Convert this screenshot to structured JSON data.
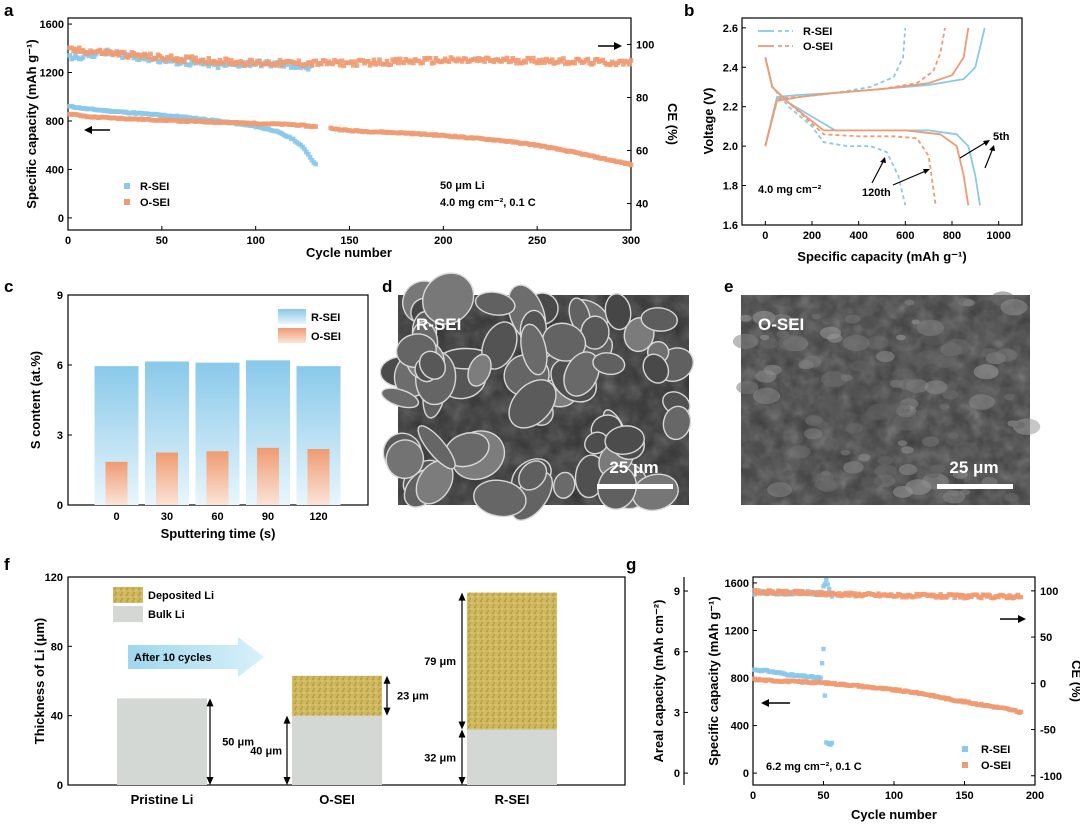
{
  "colors": {
    "rsei": "#89c9ea",
    "osei": "#ef9b72",
    "bulk": "#d3d8d5",
    "deposited": "#cfb85d",
    "sem_dark": "#2e2e2e",
    "arrow": "#b7e4f3"
  },
  "panels": {
    "a": {
      "letter": "a",
      "xlabel": "Cycle number",
      "ylabel_left": "Specific capacity (mAh g⁻¹)",
      "ylabel_right": "CE (%)",
      "note1": "50 μm Li",
      "note2": "4.0 mg cm⁻², 0.1 C",
      "legend": [
        "R-SEI",
        "O-SEI"
      ]
    },
    "b": {
      "letter": "b",
      "xlabel": "Specific capacity (mAh g⁻¹)",
      "ylabel": "Voltage (V)",
      "note": "4.0 mg cm⁻²",
      "legend": [
        "R-SEI",
        "O-SEI"
      ],
      "label_5th": "5th",
      "label_120th": "120th"
    },
    "c": {
      "letter": "c",
      "xlabel": "Sputtering time (s)",
      "ylabel": "S content (at.%)",
      "legend": [
        "R-SEI",
        "O-SEI"
      ]
    },
    "d": {
      "letter": "d",
      "label": "R-SEI",
      "scale": "25 μm"
    },
    "e": {
      "letter": "e",
      "label": "O-SEI",
      "scale": "25 μm"
    },
    "f": {
      "letter": "f",
      "ylabel": "Thickness of Li (μm)",
      "legend": [
        "Deposited Li",
        "Bulk Li"
      ],
      "arrow_text": "After 10 cycles",
      "categories": [
        "Pristine Li",
        "O-SEI",
        "R-SEI"
      ],
      "labels": {
        "pristine_bulk": "50 μm",
        "osei_bulk": "40 μm",
        "osei_dep": "23 μm",
        "rsei_bulk": "32 μm",
        "rsei_dep": "79 μm"
      }
    },
    "g": {
      "letter": "g",
      "xlabel": "Cycle number",
      "ylabel_left1": "Areal capacity (mAh cm⁻²)",
      "ylabel_left2": "Specific capacity (mAh g⁻¹)",
      "ylabel_right": "CE (%)",
      "note": "6.2 mg cm⁻², 0.1 C",
      "legend": [
        "R-SEI",
        "O-SEI"
      ]
    }
  },
  "chart_data": [
    {
      "panel": "a",
      "type": "scatter",
      "xlim": [
        0,
        300
      ],
      "ylim_left": [
        -100,
        1650
      ],
      "ylim_right": [
        30,
        110
      ],
      "xticks": [
        0,
        50,
        100,
        150,
        200,
        250,
        300
      ],
      "yticks_left": [
        0,
        400,
        800,
        1200,
        1600
      ],
      "yticks_right": [
        40,
        60,
        80,
        100
      ],
      "series": [
        {
          "name": "R-SEI",
          "axis": "left",
          "x": [
            1,
            10,
            20,
            40,
            60,
            80,
            100,
            110,
            120,
            126,
            130,
            132
          ],
          "y": [
            920,
            900,
            885,
            860,
            835,
            800,
            755,
            720,
            650,
            570,
            480,
            440
          ]
        },
        {
          "name": "O-SEI",
          "axis": "left",
          "x": [
            1,
            10,
            30,
            60,
            90,
            120,
            140,
            150,
            180,
            200,
            230,
            250,
            270,
            285,
            300
          ],
          "y": [
            860,
            835,
            820,
            800,
            785,
            770,
            740,
            720,
            700,
            680,
            640,
            600,
            540,
            490,
            440
          ]
        },
        {
          "name": "R-SEI",
          "axis": "right",
          "x": [
            1,
            20,
            50,
            80,
            100,
            120,
            130
          ],
          "y": [
            95,
            97,
            94,
            92,
            93,
            92,
            91
          ]
        },
        {
          "name": "O-SEI",
          "axis": "right",
          "x": [
            1,
            20,
            50,
            100,
            150,
            200,
            250,
            300
          ],
          "y": [
            98,
            97,
            95,
            93,
            93,
            94,
            94,
            93
          ]
        }
      ]
    },
    {
      "panel": "b",
      "type": "line",
      "xlim": [
        -100,
        1100
      ],
      "ylim": [
        1.6,
        2.65
      ],
      "xticks": [
        0,
        200,
        400,
        600,
        800,
        1000
      ],
      "yticks": [
        1.6,
        1.8,
        2.0,
        2.2,
        2.4,
        2.6
      ],
      "series": [
        {
          "name": "R-SEI 5th charge",
          "x": [
            0,
            50,
            150,
            300,
            500,
            700,
            850,
            900,
            920,
            940
          ],
          "y": [
            2.0,
            2.25,
            2.26,
            2.27,
            2.29,
            2.31,
            2.34,
            2.4,
            2.5,
            2.6
          ]
        },
        {
          "name": "R-SEI 5th discharge",
          "x": [
            0,
            30,
            100,
            200,
            300,
            500,
            700,
            820,
            870,
            900,
            920
          ],
          "y": [
            2.45,
            2.3,
            2.22,
            2.15,
            2.08,
            2.08,
            2.08,
            2.06,
            2.0,
            1.85,
            1.7
          ]
        },
        {
          "name": "R-SEI 120th charge",
          "x": [
            0,
            50,
            150,
            300,
            450,
            550,
            590,
            600
          ],
          "y": [
            2.0,
            2.24,
            2.25,
            2.27,
            2.3,
            2.35,
            2.45,
            2.6
          ]
        },
        {
          "name": "R-SEI 120th discharge",
          "x": [
            0,
            30,
            100,
            200,
            250,
            350,
            450,
            520,
            570,
            600
          ],
          "y": [
            2.45,
            2.3,
            2.2,
            2.1,
            2.02,
            2.0,
            2.0,
            1.97,
            1.85,
            1.7
          ]
        },
        {
          "name": "O-SEI 5th charge",
          "x": [
            0,
            50,
            150,
            300,
            500,
            700,
            800,
            850,
            870
          ],
          "y": [
            2.0,
            2.23,
            2.25,
            2.27,
            2.29,
            2.32,
            2.36,
            2.45,
            2.6
          ]
        },
        {
          "name": "O-SEI 5th discharge",
          "x": [
            0,
            30,
            100,
            250,
            400,
            600,
            750,
            820,
            850,
            870
          ],
          "y": [
            2.45,
            2.3,
            2.22,
            2.08,
            2.08,
            2.08,
            2.06,
            2.0,
            1.85,
            1.7
          ]
        },
        {
          "name": "O-SEI 120th charge",
          "x": [
            0,
            50,
            150,
            300,
            500,
            650,
            720,
            750,
            770
          ],
          "y": [
            2.0,
            2.24,
            2.25,
            2.27,
            2.29,
            2.32,
            2.38,
            2.47,
            2.6
          ]
        },
        {
          "name": "O-SEI 120th discharge",
          "x": [
            0,
            30,
            100,
            250,
            400,
            550,
            650,
            700,
            730
          ],
          "y": [
            2.45,
            2.3,
            2.22,
            2.06,
            2.05,
            2.05,
            2.04,
            1.95,
            1.7
          ]
        }
      ]
    },
    {
      "panel": "c",
      "type": "bar",
      "categories": [
        "0",
        "30",
        "60",
        "90",
        "120"
      ],
      "ylim": [
        0,
        9
      ],
      "yticks": [
        0,
        3,
        6,
        9
      ],
      "series": [
        {
          "name": "R-SEI",
          "values": [
            5.95,
            6.15,
            6.1,
            6.2,
            5.95
          ]
        },
        {
          "name": "O-SEI",
          "values": [
            1.85,
            2.25,
            2.3,
            2.45,
            2.4
          ]
        }
      ]
    },
    {
      "panel": "f",
      "type": "bar",
      "categories": [
        "Pristine Li",
        "O-SEI",
        "R-SEI"
      ],
      "ylim": [
        0,
        120
      ],
      "yticks": [
        0,
        40,
        80,
        120
      ],
      "series": [
        {
          "name": "Bulk Li",
          "values": [
            50,
            40,
            32
          ]
        },
        {
          "name": "Deposited Li",
          "values": [
            0,
            23,
            79
          ]
        }
      ]
    },
    {
      "panel": "g",
      "type": "scatter",
      "xlim": [
        0,
        200
      ],
      "ylim_left": [
        -100,
        1650
      ],
      "ylim_right": [
        -110,
        115
      ],
      "xticks": [
        0,
        50,
        100,
        150,
        200
      ],
      "yticks_left": [
        0,
        400,
        800,
        1200,
        1600
      ],
      "yticks_right": [
        -100,
        -50,
        0,
        50,
        100
      ],
      "yticks_areal": [
        0,
        3,
        6,
        9
      ],
      "series": [
        {
          "name": "R-SEI",
          "axis": "left",
          "x": [
            1,
            10,
            20,
            30,
            40,
            48,
            50,
            52,
            54,
            56
          ],
          "y": [
            870,
            860,
            840,
            820,
            810,
            800,
            1040,
            260,
            240,
            250
          ]
        },
        {
          "name": "O-SEI",
          "axis": "left",
          "x": [
            1,
            10,
            30,
            50,
            70,
            100,
            120,
            140,
            160,
            180,
            190
          ],
          "y": [
            790,
            780,
            770,
            760,
            740,
            700,
            670,
            620,
            580,
            540,
            510
          ]
        },
        {
          "name": "R-SEI",
          "axis": "right",
          "x": [
            1,
            20,
            40,
            48,
            52,
            56
          ],
          "y": [
            98,
            98,
            98,
            97,
            110,
            95
          ]
        },
        {
          "name": "O-SEI",
          "axis": "right",
          "x": [
            1,
            50,
            100,
            150,
            190
          ],
          "y": [
            99,
            97,
            95,
            94,
            94
          ]
        }
      ]
    }
  ]
}
